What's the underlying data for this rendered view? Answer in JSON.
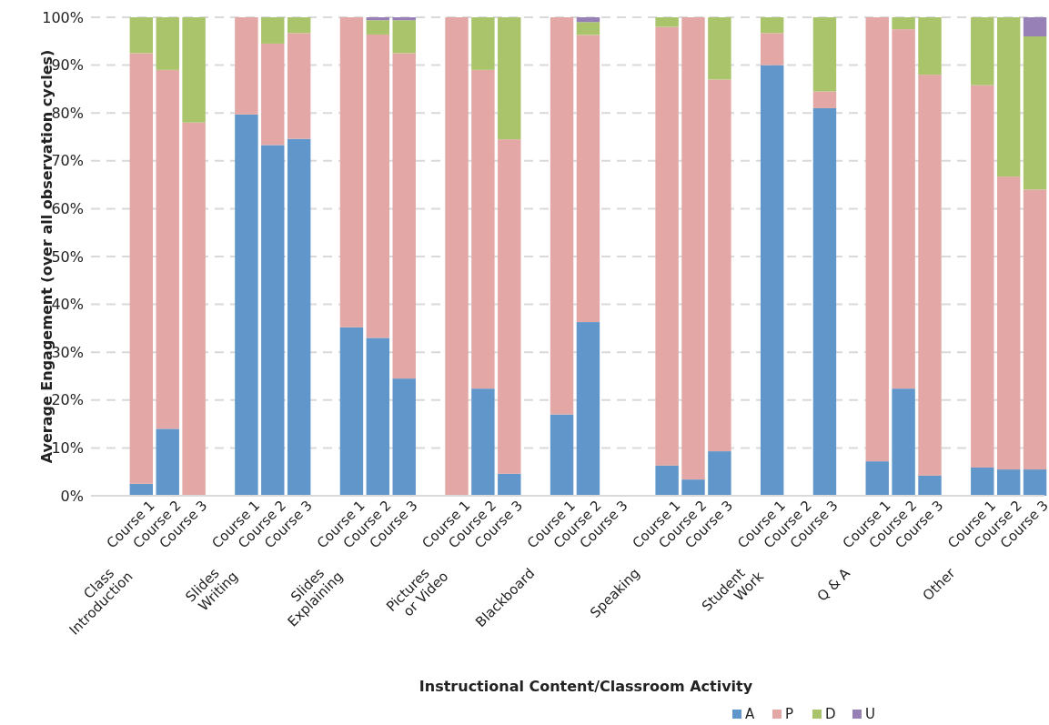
{
  "chart_data": {
    "type": "bar",
    "stacked": true,
    "ylabel": "Average Engagement (over all observation cycles)",
    "categories": [
      null,
      "Course 1",
      "Course 2",
      "Course 3",
      null,
      "Course 1",
      "Course 2",
      "Course 3",
      null,
      "Course 1",
      "Course 2",
      "Course 3",
      null,
      "Course 1",
      "Course 2",
      "Course 3",
      null,
      "Course 1",
      "Course 2",
      "Course 3",
      null,
      "Course 1",
      "Course 2",
      "Course 3",
      null,
      "Course 1",
      "Course 2",
      "Course 3",
      null,
      "Course 1",
      "Course 2",
      "Course 3",
      null,
      "Course 1",
      "Course 2",
      "Course 3"
    ],
    "annotations": [
      "Class\nIntroduction",
      "Slides\nWriting",
      "Slides\nExplaining",
      "Pictures\nor Video",
      "Blackboard",
      "Speaking",
      "Student\nWork",
      "Q & A",
      "Other",
      "Instructional Content/Classroom Activity"
    ],
    "series": [
      {
        "name": "A",
        "color": "#6096c9",
        "values": [
          null,
          2.5,
          14,
          0,
          null,
          79.7,
          73.3,
          74.6,
          null,
          35.2,
          33,
          24.5,
          null,
          0,
          22.4,
          4.6,
          null,
          17,
          36.3,
          null,
          null,
          6.3,
          3.4,
          9.3,
          null,
          90,
          null,
          81,
          null,
          7.2,
          22.4,
          4.2,
          null,
          5.9,
          5.5,
          5.5
        ]
      },
      {
        "name": "P",
        "color": "#e3a8a6",
        "values": [
          null,
          90,
          75,
          78,
          null,
          20.3,
          21.2,
          22.1,
          null,
          64.8,
          63.4,
          68,
          null,
          100,
          66.6,
          69.9,
          null,
          83,
          60,
          null,
          null,
          91.7,
          96.6,
          77.7,
          null,
          6.7,
          null,
          3.5,
          null,
          92.8,
          75.1,
          83.8,
          null,
          79.9,
          61.2,
          58.5
        ]
      },
      {
        "name": "D",
        "color": "#aac46b",
        "values": [
          null,
          7.5,
          11,
          22,
          null,
          0,
          5.5,
          3.3,
          null,
          0,
          3,
          6.9,
          null,
          0,
          11,
          25.5,
          null,
          0,
          2.7,
          null,
          null,
          2,
          0,
          13,
          null,
          3.3,
          null,
          15.5,
          null,
          0,
          2.5,
          12,
          null,
          14.2,
          33.3,
          32
        ]
      },
      {
        "name": "U",
        "color": "#9680b6",
        "values": [
          null,
          0,
          0,
          0,
          null,
          0,
          0,
          0,
          null,
          0,
          0.6,
          0.6,
          null,
          0,
          0,
          0,
          null,
          0,
          1,
          null,
          null,
          0,
          0,
          0,
          null,
          0,
          null,
          0,
          null,
          0,
          0,
          0,
          null,
          0,
          0,
          4
        ]
      }
    ],
    "ylim": [
      0,
      100
    ],
    "yticks": [
      {
        "value": 0,
        "label": "0%"
      },
      {
        "value": 10,
        "label": "10%"
      },
      {
        "value": 20,
        "label": "20%"
      },
      {
        "value": 30,
        "label": "30%"
      },
      {
        "value": 40,
        "label": "40%"
      },
      {
        "value": 50,
        "label": "50%"
      },
      {
        "value": 60,
        "label": "60%"
      },
      {
        "value": 70,
        "label": "70%"
      },
      {
        "value": 80,
        "label": "80%"
      },
      {
        "value": 90,
        "label": "90%"
      },
      {
        "value": 100,
        "label": "100%"
      }
    ],
    "grid": "y",
    "legend": "bottom"
  }
}
